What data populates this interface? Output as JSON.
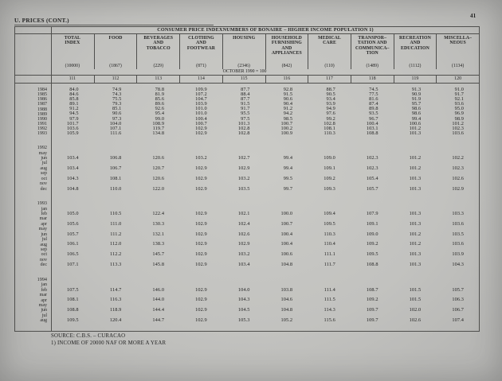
{
  "page": {
    "section_label": "U. PRICES (CONT.)",
    "page_number": "41",
    "footer_source": "SOURCE: C.B.S. – CURACAO",
    "footer_note": "1) INCOME OF 20000 NAF OR MORE A YEAR"
  },
  "table": {
    "title": "CONSUMER PRICE INDEXNUMBERS OF BONAIRE – HIGHER INCOME POPULATION 1)",
    "base_period_note": "OCTOBER 1990 = 100",
    "columns": [
      {
        "name": "total-index",
        "label": "TOTAL\nINDEX",
        "weight": "(10000)",
        "code": "111"
      },
      {
        "name": "food",
        "label": "FOOD",
        "weight": "(1867)",
        "code": "112"
      },
      {
        "name": "beverages-and-tobacco",
        "label": "BEVERAGES\nAND\nTOBACCO",
        "weight": "(229)",
        "code": "113"
      },
      {
        "name": "clothing-and-footwear",
        "label": "CLOTHING\nAND\nFOOTWEAR",
        "weight": "(871)",
        "code": "114"
      },
      {
        "name": "housing",
        "label": "HOUSING",
        "weight": "(2346)",
        "code": "115"
      },
      {
        "name": "household-furnishing-and-appliances",
        "label": "HOUSEHOLD\nFURNISHING\nAND\nAPPLIANCES",
        "weight": "(842)",
        "code": "116"
      },
      {
        "name": "medical-care",
        "label": "MEDICAL\nCARE",
        "weight": "(110)",
        "code": "117"
      },
      {
        "name": "transportation-and-communication",
        "label": "TRANSPOR–\nTATION AND\nCOMMUNICA–\nTION",
        "weight": "(1489)",
        "code": "118"
      },
      {
        "name": "recreation-and-education",
        "label": "RECREATION\nAND\nEDUCATION",
        "weight": "(1112)",
        "code": "119"
      },
      {
        "name": "miscellaneous",
        "label": "MISCELLA–\nNEOUS",
        "weight": "(1134)",
        "code": "120"
      }
    ],
    "annual_rows": [
      {
        "year": "1984",
        "values": [
          "84.0",
          "74.9",
          "78.8",
          "109.9",
          "87.7",
          "92.8",
          "88.7",
          "74.5",
          "91.3",
          "91.0"
        ]
      },
      {
        "year": "1985",
        "values": [
          "84.6",
          "74.3",
          "81.9",
          "107.2",
          "88.4",
          "91.5",
          "90.5",
          "77.5",
          "90.9",
          "91.7"
        ]
      },
      {
        "year": "1986",
        "values": [
          "85.8",
          "75.5",
          "85.6",
          "104.7",
          "87.7",
          "90.6",
          "93.4",
          "81.6",
          "91.9",
          "92.1"
        ]
      },
      {
        "year": "1987",
        "values": [
          "89.1",
          "79.3",
          "89.6",
          "103.9",
          "91.5",
          "90.4",
          "93.9",
          "87.4",
          "95.7",
          "93.6"
        ]
      },
      {
        "year": "1988",
        "values": [
          "91.2",
          "85.1",
          "92.6",
          "101.0",
          "91.7",
          "91.2",
          "94.9",
          "89.8",
          "98.6",
          "95.0"
        ]
      },
      {
        "year": "1989",
        "values": [
          "94.5",
          "90.6",
          "95.4",
          "101.0",
          "95.5",
          "94.2",
          "97.6",
          "93.5",
          "98.6",
          "96.9"
        ]
      },
      {
        "year": "1990",
        "values": [
          "97.9",
          "97.3",
          "99.0",
          "100.4",
          "97.5",
          "98.5",
          "99.2",
          "96.7",
          "99.4",
          "98.9"
        ]
      },
      {
        "year": "1991",
        "values": [
          "101.7",
          "104.0",
          "108.9",
          "100.7",
          "101.3",
          "100.7",
          "102.8",
          "100.4",
          "100.6",
          "101.2"
        ]
      },
      {
        "year": "1992",
        "values": [
          "103.6",
          "107.1",
          "119.7",
          "102.9",
          "102.8",
          "100.2",
          "108.1",
          "103.1",
          "101.2",
          "102.3"
        ]
      },
      {
        "year": "1993",
        "values": [
          "105.9",
          "111.6",
          "134.8",
          "102.9",
          "102.8",
          "100.9",
          "110.3",
          "108.8",
          "101.3",
          "103.6"
        ]
      }
    ],
    "monthly_blocks": [
      {
        "year": "1992",
        "months": [
          {
            "label": "may"
          },
          {
            "label": "jun",
            "values": [
              "103.4",
              "106.8",
              "120.6",
              "103.2",
              "102.7",
              "99.4",
              "109.0",
              "102.3",
              "101.2",
              "102.2"
            ]
          },
          {
            "label": "jul"
          },
          {
            "label": "aug",
            "values": [
              "103.4",
              "106.7",
              "120.7",
              "102.9",
              "102.9",
              "99.4",
              "109.1",
              "102.3",
              "101.2",
              "102.3"
            ]
          },
          {
            "label": "sep"
          },
          {
            "label": "oct",
            "values": [
              "104.3",
              "108.1",
              "120.6",
              "102.9",
              "103.2",
              "99.5",
              "109.2",
              "105.4",
              "101.3",
              "102.6"
            ]
          },
          {
            "label": "nov"
          },
          {
            "label": "dec",
            "values": [
              "104.8",
              "110.0",
              "122.0",
              "102.9",
              "103.5",
              "99.7",
              "109.3",
              "105.7",
              "101.3",
              "102.9"
            ]
          }
        ]
      },
      {
        "year": "1993",
        "months": [
          {
            "label": "jan"
          },
          {
            "label": "feb",
            "values": [
              "105.0",
              "110.5",
              "122.4",
              "102.9",
              "102.1",
              "100.0",
              "109.4",
              "107.9",
              "101.3",
              "103.3"
            ]
          },
          {
            "label": "mar"
          },
          {
            "label": "apr",
            "values": [
              "105.6",
              "111.0",
              "130.3",
              "102.9",
              "102.4",
              "100.7",
              "109.5",
              "109.1",
              "101.3",
              "103.6"
            ]
          },
          {
            "label": "may"
          },
          {
            "label": "jun",
            "values": [
              "105.7",
              "111.2",
              "132.1",
              "102.9",
              "102.6",
              "100.4",
              "110.3",
              "109.0",
              "101.2",
              "103.5"
            ]
          },
          {
            "label": "jul"
          },
          {
            "label": "aug",
            "values": [
              "106.1",
              "112.0",
              "138.3",
              "102.9",
              "102.9",
              "100.4",
              "110.4",
              "109.2",
              "101.2",
              "103.6"
            ]
          },
          {
            "label": "sep"
          },
          {
            "label": "oct",
            "values": [
              "106.5",
              "112.2",
              "145.7",
              "102.9",
              "103.2",
              "100.6",
              "111.1",
              "109.5",
              "101.3",
              "103.9"
            ]
          },
          {
            "label": "nov"
          },
          {
            "label": "dec",
            "values": [
              "107.1",
              "113.3",
              "145.8",
              "102.9",
              "103.4",
              "104.8",
              "111.7",
              "108.8",
              "101.3",
              "104.3"
            ]
          }
        ]
      },
      {
        "year": "1994",
        "months": [
          {
            "label": "jan"
          },
          {
            "label": "feb",
            "values": [
              "107.5",
              "114.7",
              "146.0",
              "102.9",
              "104.0",
              "103.8",
              "111.4",
              "108.7",
              "101.5",
              "105.7"
            ]
          },
          {
            "label": "mar"
          },
          {
            "label": "apr",
            "values": [
              "108.1",
              "116.3",
              "144.0",
              "102.9",
              "104.3",
              "104.6",
              "111.5",
              "109.2",
              "101.5",
              "106.3"
            ]
          },
          {
            "label": "may"
          },
          {
            "label": "jun",
            "values": [
              "108.8",
              "118.9",
              "144.4",
              "102.9",
              "104.5",
              "104.8",
              "114.3",
              "109.7",
              "102.0",
              "106.7"
            ]
          },
          {
            "label": "jul"
          },
          {
            "label": "aug",
            "values": [
              "109.5",
              "120.4",
              "144.7",
              "102.9",
              "105.3",
              "105.2",
              "115.6",
              "109.7",
              "102.6",
              "107.4"
            ]
          }
        ]
      }
    ]
  }
}
